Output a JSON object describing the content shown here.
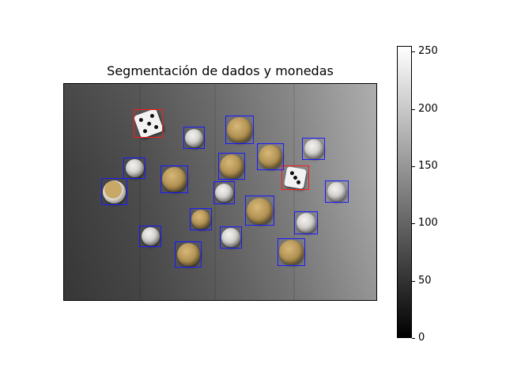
{
  "figure": {
    "title": "Segmentación de dados y monedas"
  },
  "image": {
    "description_colors": {
      "coin_box": "#1a1aff",
      "die_box": "#ff1a1a"
    },
    "detections": [
      {
        "kind": "die",
        "color": "#ff1a1a"
      },
      {
        "kind": "die",
        "color": "#ff1a1a"
      },
      {
        "kind": "coin",
        "color": "#1a1aff"
      },
      {
        "kind": "coin",
        "color": "#1a1aff"
      },
      {
        "kind": "coin",
        "color": "#1a1aff"
      },
      {
        "kind": "coin",
        "color": "#1a1aff"
      },
      {
        "kind": "coin",
        "color": "#1a1aff"
      },
      {
        "kind": "coin",
        "color": "#1a1aff"
      },
      {
        "kind": "coin",
        "color": "#1a1aff"
      },
      {
        "kind": "coin",
        "color": "#1a1aff"
      },
      {
        "kind": "coin",
        "color": "#1a1aff"
      },
      {
        "kind": "coin",
        "color": "#1a1aff"
      },
      {
        "kind": "coin",
        "color": "#1a1aff"
      },
      {
        "kind": "coin",
        "color": "#1a1aff"
      },
      {
        "kind": "coin",
        "color": "#1a1aff"
      },
      {
        "kind": "coin",
        "color": "#1a1aff"
      },
      {
        "kind": "coin",
        "color": "#1a1aff"
      },
      {
        "kind": "coin",
        "color": "#1a1aff"
      },
      {
        "kind": "coin",
        "color": "#1a1aff"
      }
    ]
  },
  "colorbar": {
    "colormap": "gray",
    "range": [
      0,
      255
    ],
    "ticks": [
      "0",
      "50",
      "100",
      "150",
      "200",
      "250"
    ]
  }
}
